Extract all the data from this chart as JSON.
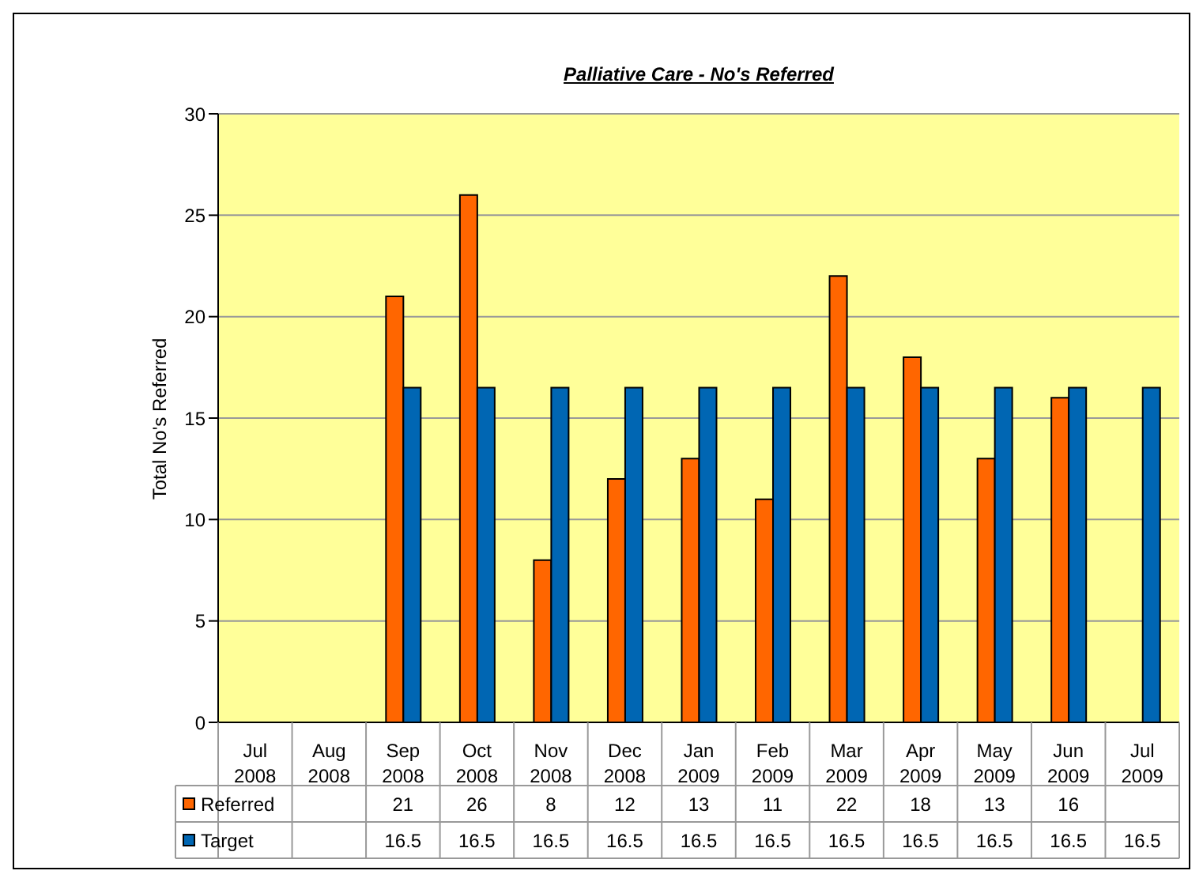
{
  "chart_data": {
    "type": "bar",
    "title": "Palliative Care - No's Referred",
    "ylabel": "Total No's Referred",
    "categories": [
      "Jul 2008",
      "Aug 2008",
      "Sep 2008",
      "Oct 2008",
      "Nov 2008",
      "Dec 2008",
      "Jan 2009",
      "Feb 2009",
      "Mar 2009",
      "Apr 2009",
      "May 2009",
      "Jun 2009",
      "Jul 2009"
    ],
    "series": [
      {
        "name": "Referred",
        "color": "#ff6600",
        "values": [
          null,
          null,
          21,
          26,
          8,
          12,
          13,
          11,
          22,
          18,
          13,
          16,
          null
        ]
      },
      {
        "name": "Target",
        "color": "#0066b3",
        "values": [
          null,
          null,
          16.5,
          16.5,
          16.5,
          16.5,
          16.5,
          16.5,
          16.5,
          16.5,
          16.5,
          16.5,
          16.5
        ]
      }
    ],
    "ylim": [
      0,
      30
    ],
    "yticks": [
      0,
      5,
      10,
      15,
      20,
      25,
      30
    ],
    "grid": "y",
    "legend": "bottom",
    "data_labels": true
  }
}
